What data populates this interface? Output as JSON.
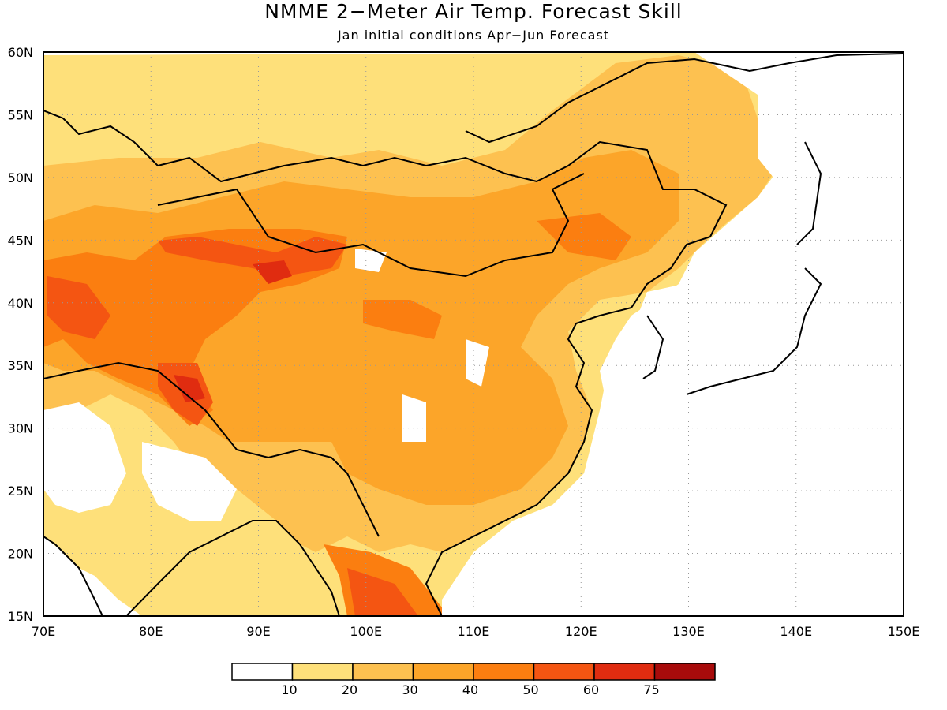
{
  "title": "NMME 2−Meter Air Temp. Forecast Skill",
  "subtitle": "Jan initial conditions  Apr−Jun Forecast",
  "map": {
    "lon_labels": [
      "70E",
      "80E",
      "90E",
      "100E",
      "110E",
      "120E",
      "130E",
      "140E",
      "150E"
    ],
    "lat_labels": [
      "60N",
      "55N",
      "50N",
      "45N",
      "40N",
      "35N",
      "30N",
      "25N",
      "20N",
      "15N"
    ],
    "lon_range": [
      70,
      150
    ],
    "lat_range": [
      15,
      60
    ]
  },
  "legend": {
    "ticks": [
      "10",
      "20",
      "30",
      "40",
      "50",
      "60",
      "75"
    ],
    "colors": [
      "#ffffff",
      "#fee07a",
      "#fdc150",
      "#fca529",
      "#fb7e10",
      "#f45512",
      "#e02c10",
      "#a80b0b"
    ]
  }
}
